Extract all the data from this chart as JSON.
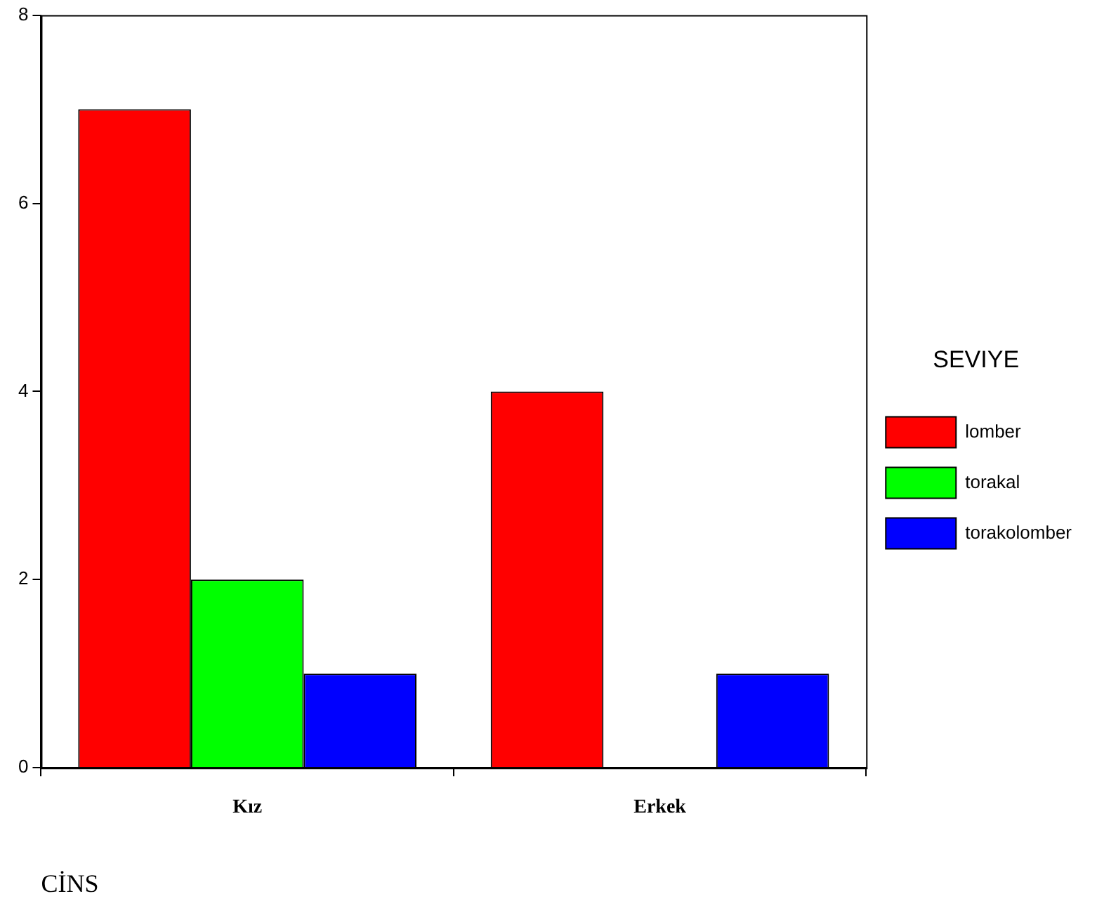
{
  "chart_data": {
    "type": "bar",
    "xlabel": "CİNS",
    "legend_title": "SEVIYE",
    "categories": [
      "Kız",
      "Erkek"
    ],
    "series": [
      {
        "name": "lomber",
        "color": "#ff0000",
        "values": [
          7,
          4
        ]
      },
      {
        "name": "torakal",
        "color": "#00ff00",
        "values": [
          2,
          0
        ]
      },
      {
        "name": "torakolomber",
        "color": "#0000ff",
        "values": [
          1,
          1
        ]
      }
    ],
    "ylim": [
      0,
      8
    ],
    "yticks": [
      0,
      2,
      4,
      6,
      8
    ],
    "grid": false,
    "legend": "right"
  }
}
